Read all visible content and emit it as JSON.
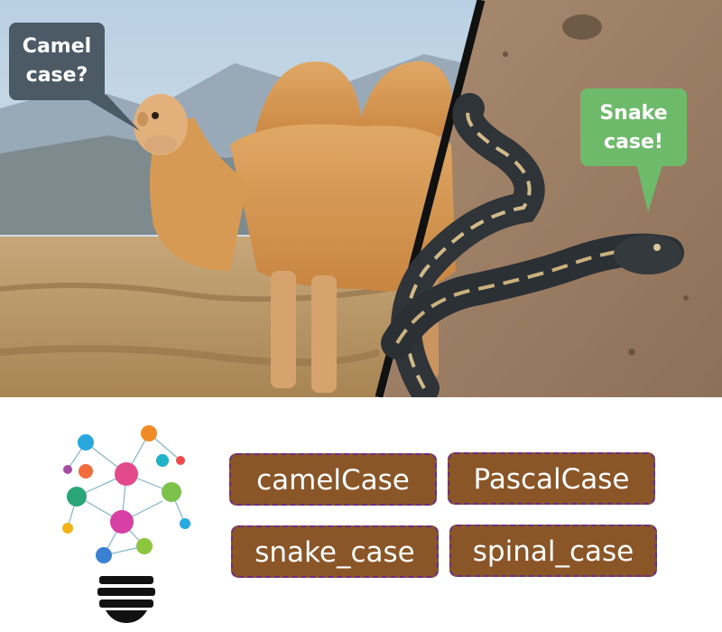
{
  "bubbles": {
    "camel": {
      "line1": "Camel",
      "line2": "case?",
      "color": "#4c5a66"
    },
    "snake": {
      "line1": "Snake",
      "line2": "case!",
      "color": "#6dbb6a"
    }
  },
  "tags": {
    "camel_case": "camelCase",
    "pascal_case": "PascalCase",
    "snake_case": "snake_case",
    "spinal_case": "spinal_case"
  },
  "colors": {
    "tag_fill": "#8a5527",
    "tag_border": "#6a2c8a",
    "bulb_base": "#111111"
  }
}
